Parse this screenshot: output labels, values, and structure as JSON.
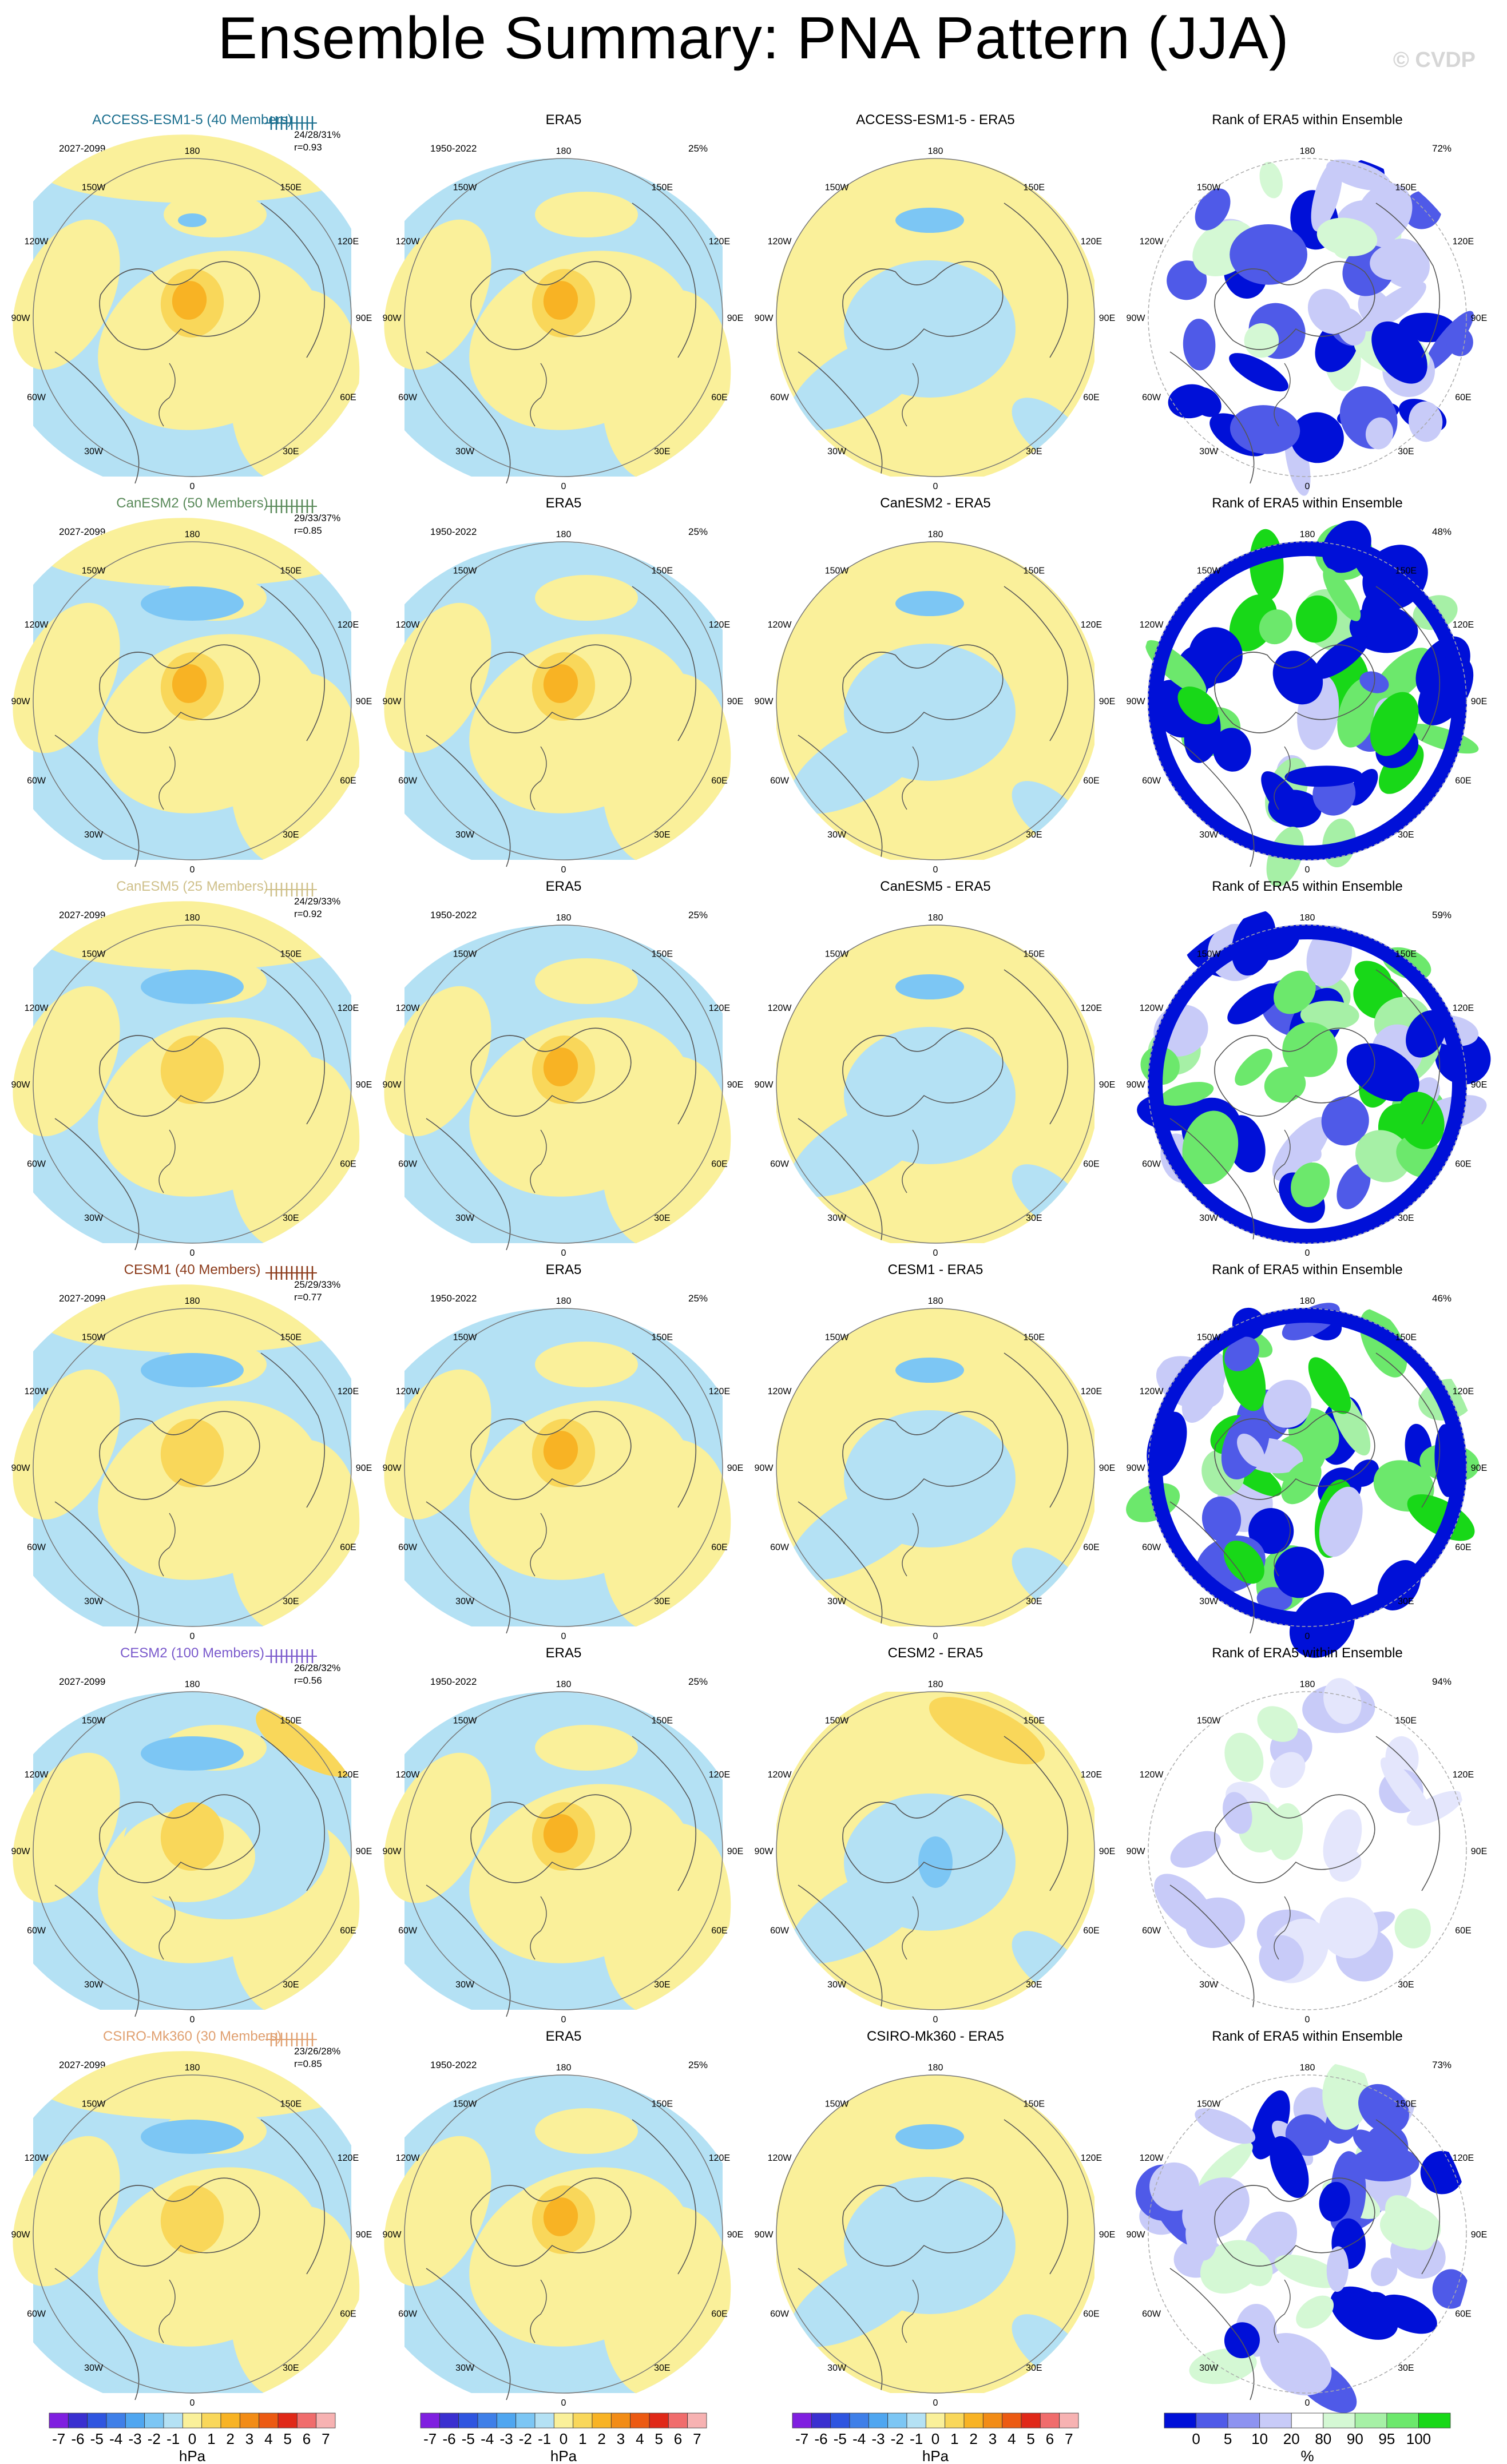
{
  "title": "Ensemble Summary: PNA Pattern (JJA)",
  "credit": "© CVDP",
  "obs_name": "ERA5",
  "rank_title": "Rank of ERA5 within Ensemble",
  "model_period": "2027-2099",
  "obs_period": "1950-2022",
  "obs_pct": "25%",
  "lon_labels": {
    "top": "180",
    "upper_left": "150W",
    "upper_right": "150E",
    "left_upper": "120W",
    "right_upper": "120E",
    "left": "90W",
    "right": "90E",
    "left_lower": "60W",
    "right_lower": "60E",
    "lower_left": "30W",
    "lower_right": "30E",
    "bottom": "0"
  },
  "rows": [
    {
      "model": "ACCESS-ESM1-5",
      "label": "ACCESS-ESM1-5 (40 Members)",
      "color": "#1a6e8e",
      "stats": "24/28/31%",
      "r": "r=0.93",
      "diff_title": "ACCESS-ESM1-5 - ERA5",
      "rank_pct": "72%",
      "rank_style": "light"
    },
    {
      "model": "CanESM2",
      "label": "CanESM2 (50 Members)",
      "color": "#5a8a5a",
      "stats": "29/33/37%",
      "r": "r=0.85",
      "diff_title": "CanESM2 - ERA5",
      "rank_pct": "48%",
      "rank_style": "strong"
    },
    {
      "model": "CanESM5",
      "label": "CanESM5 (25 Members)",
      "color": "#cfc08a",
      "stats": "24/29/33%",
      "r": "r=0.92",
      "diff_title": "CanESM5 - ERA5",
      "rank_pct": "59%",
      "rank_style": "strong"
    },
    {
      "model": "CESM1",
      "label": "CESM1 (40 Members)",
      "color": "#8b3a1a",
      "stats": "25/29/33%",
      "r": "r=0.77",
      "diff_title": "CESM1 - ERA5",
      "rank_pct": "46%",
      "rank_style": "strong"
    },
    {
      "model": "CESM2",
      "label": "CESM2 (100 Members)",
      "color": "#7a5acc",
      "stats": "26/28/32%",
      "r": "r=0.56",
      "diff_title": "CESM2 - ERA5",
      "rank_pct": "94%",
      "rank_style": "faint"
    },
    {
      "model": "CSIRO-Mk360",
      "label": "CSIRO-Mk360 (30 Members)",
      "color": "#e0a070",
      "stats": "23/26/28%",
      "r": "r=0.85",
      "diff_title": "CSIRO-Mk360 - ERA5",
      "rank_pct": "73%",
      "rank_style": "light"
    }
  ],
  "colorbar_hpa": {
    "labels": [
      "-7",
      "-6",
      "-5",
      "-4",
      "-3",
      "-2",
      "-1",
      "0",
      "1",
      "2",
      "3",
      "4",
      "5",
      "6",
      "7"
    ],
    "colors": [
      "#7f1fe0",
      "#3a2fd0",
      "#2f55e0",
      "#3f7fe8",
      "#4fa6f0",
      "#7cc6f4",
      "#b4e1f4",
      "#faf09a",
      "#f9d75a",
      "#f8b324",
      "#f28c16",
      "#ec5a12",
      "#e02818",
      "#f06c6c",
      "#f7b2b2"
    ],
    "unit": "hPa"
  },
  "colorbar_rank": {
    "labels": [
      "0",
      "5",
      "10",
      "20",
      "80",
      "90",
      "95",
      "100"
    ],
    "colors": [
      "#0010d8",
      "#4f5ae8",
      "#8d93f0",
      "#c8cbf8",
      "#ffffff",
      "#d4f8d4",
      "#a6f0a6",
      "#6ce86c",
      "#18d818"
    ],
    "unit": "%"
  }
}
